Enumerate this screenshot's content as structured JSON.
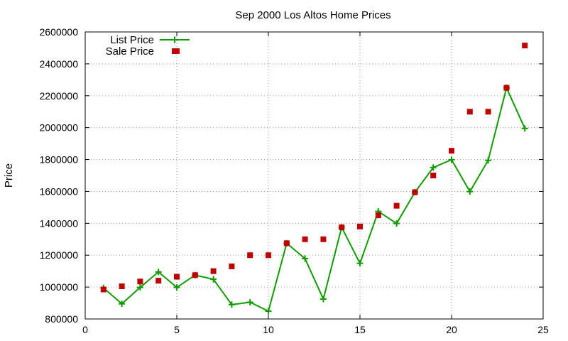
{
  "chart_data": {
    "type": "line",
    "title": "Sep 2000 Los Altos Home Prices",
    "xlabel": "",
    "ylabel": "Price",
    "xlim": [
      0,
      25
    ],
    "ylim": [
      800000,
      2600000
    ],
    "xticks": [
      0,
      5,
      10,
      15,
      20,
      25
    ],
    "yticks": [
      800000,
      1000000,
      1200000,
      1400000,
      1600000,
      1800000,
      2000000,
      2200000,
      2400000,
      2600000
    ],
    "grid": true,
    "legend_position": "top-left",
    "series": [
      {
        "name": "List Price",
        "kind": "line-points",
        "color": "#109b00",
        "marker": "plus",
        "points": [
          [
            1,
            995000
          ],
          [
            2,
            895000
          ],
          [
            3,
            998000
          ],
          [
            4,
            1095000
          ],
          [
            5,
            998000
          ],
          [
            6,
            1075000
          ],
          [
            7,
            1049000
          ],
          [
            8,
            890000
          ],
          [
            9,
            905000
          ],
          [
            10,
            849000
          ],
          [
            11,
            1275000
          ],
          [
            12,
            1179000
          ],
          [
            13,
            925000
          ],
          [
            14,
            1375000
          ],
          [
            15,
            1149000
          ],
          [
            16,
            1475000
          ],
          [
            17,
            1399000
          ],
          [
            18,
            1595000
          ],
          [
            19,
            1750000
          ],
          [
            20,
            1799000
          ],
          [
            21,
            1599000
          ],
          [
            22,
            1795000
          ],
          [
            23,
            2250000
          ],
          [
            24,
            1995000
          ]
        ]
      },
      {
        "name": "Sale Price",
        "kind": "points",
        "color": "#c00000",
        "marker": "square",
        "points": [
          [
            1,
            985000
          ],
          [
            2,
            1005000
          ],
          [
            3,
            1035000
          ],
          [
            4,
            1040000
          ],
          [
            5,
            2480000
          ],
          [
            5,
            1065000
          ],
          [
            6,
            1075000
          ],
          [
            7,
            1100000
          ],
          [
            8,
            1130000
          ],
          [
            9,
            1200000
          ],
          [
            10,
            1200000
          ],
          [
            11,
            1275000
          ],
          [
            12,
            1300000
          ],
          [
            13,
            1300000
          ],
          [
            14,
            1375000
          ],
          [
            15,
            1380000
          ],
          [
            16,
            1450000
          ],
          [
            17,
            1510000
          ],
          [
            18,
            1595000
          ],
          [
            19,
            1700000
          ],
          [
            20,
            1855000
          ],
          [
            21,
            2100000
          ],
          [
            22,
            2100000
          ],
          [
            23,
            2250000
          ],
          [
            24,
            2515000
          ]
        ]
      }
    ]
  }
}
